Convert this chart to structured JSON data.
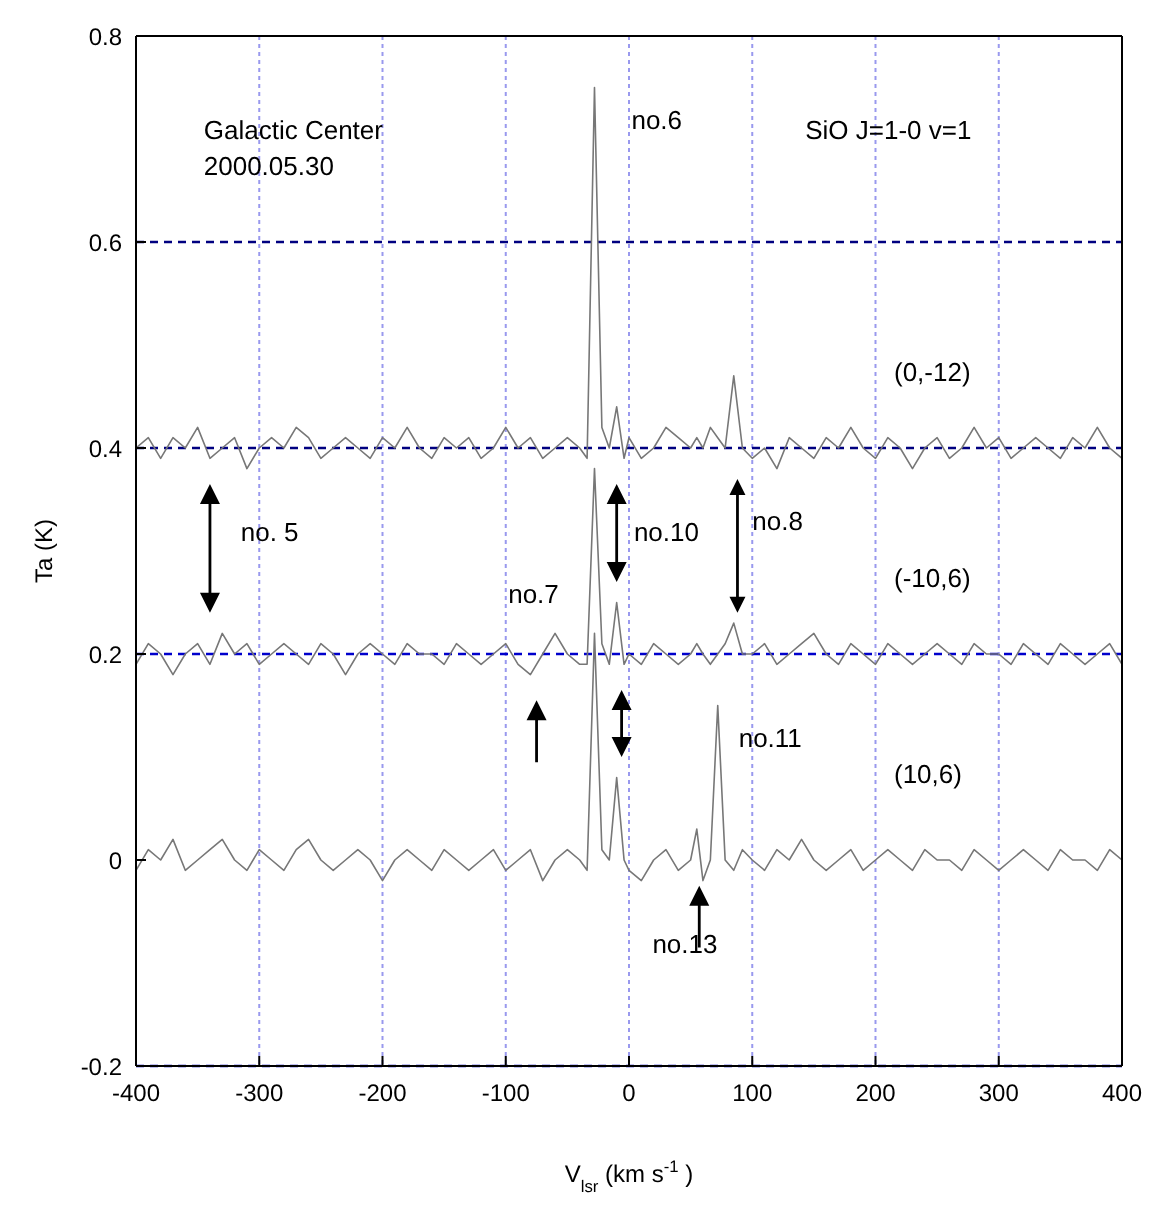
{
  "chart_data": {
    "type": "line",
    "xlabel": "V$_{lsr}$ (km s$^{-1}$)",
    "ylabel": "Ta (K)",
    "x": [
      -400,
      -390,
      -380,
      -370,
      -360,
      -350,
      -340,
      -330,
      -320,
      -310,
      -300,
      -290,
      -280,
      -270,
      -260,
      -250,
      -240,
      -230,
      -220,
      -210,
      -200,
      -190,
      -180,
      -170,
      -160,
      -150,
      -140,
      -130,
      -120,
      -110,
      -100,
      -90,
      -80,
      -70,
      -60,
      -50,
      -40,
      -34,
      -28,
      -22,
      -16,
      -10,
      -4,
      0,
      10,
      20,
      30,
      40,
      50,
      55,
      60,
      66,
      72,
      78,
      85,
      92,
      100,
      110,
      120,
      130,
      140,
      150,
      160,
      170,
      180,
      190,
      200,
      210,
      220,
      230,
      240,
      250,
      260,
      270,
      280,
      290,
      300,
      310,
      320,
      330,
      340,
      350,
      360,
      370,
      380,
      390,
      400
    ],
    "series": [
      {
        "name": "(0,-12)",
        "color": "#777777",
        "values": [
          0.4,
          0.41,
          0.39,
          0.41,
          0.4,
          0.42,
          0.39,
          0.4,
          0.41,
          0.38,
          0.4,
          0.41,
          0.4,
          0.42,
          0.41,
          0.39,
          0.4,
          0.41,
          0.4,
          0.39,
          0.41,
          0.4,
          0.42,
          0.4,
          0.39,
          0.41,
          0.4,
          0.41,
          0.39,
          0.4,
          0.42,
          0.4,
          0.41,
          0.39,
          0.4,
          0.41,
          0.4,
          0.39,
          0.75,
          0.42,
          0.4,
          0.44,
          0.39,
          0.41,
          0.39,
          0.4,
          0.42,
          0.41,
          0.4,
          0.41,
          0.4,
          0.42,
          0.41,
          0.4,
          0.47,
          0.4,
          0.39,
          0.4,
          0.38,
          0.41,
          0.4,
          0.39,
          0.41,
          0.4,
          0.42,
          0.4,
          0.39,
          0.41,
          0.4,
          0.38,
          0.4,
          0.41,
          0.39,
          0.4,
          0.42,
          0.4,
          0.41,
          0.39,
          0.4,
          0.41,
          0.4,
          0.39,
          0.41,
          0.4,
          0.42,
          0.4,
          0.39
        ]
      },
      {
        "name": "(-10,6)",
        "color": "#777777",
        "values": [
          0.19,
          0.21,
          0.2,
          0.18,
          0.2,
          0.21,
          0.19,
          0.22,
          0.2,
          0.21,
          0.19,
          0.2,
          0.21,
          0.2,
          0.19,
          0.21,
          0.2,
          0.18,
          0.2,
          0.21,
          0.2,
          0.19,
          0.21,
          0.2,
          0.2,
          0.19,
          0.21,
          0.2,
          0.19,
          0.2,
          0.21,
          0.19,
          0.18,
          0.2,
          0.22,
          0.2,
          0.19,
          0.19,
          0.38,
          0.21,
          0.19,
          0.25,
          0.19,
          0.2,
          0.19,
          0.21,
          0.2,
          0.19,
          0.2,
          0.21,
          0.2,
          0.19,
          0.2,
          0.21,
          0.23,
          0.2,
          0.2,
          0.21,
          0.19,
          0.2,
          0.21,
          0.22,
          0.2,
          0.19,
          0.21,
          0.2,
          0.19,
          0.21,
          0.2,
          0.19,
          0.2,
          0.21,
          0.2,
          0.19,
          0.21,
          0.2,
          0.2,
          0.19,
          0.21,
          0.2,
          0.19,
          0.21,
          0.2,
          0.19,
          0.2,
          0.21,
          0.19
        ]
      },
      {
        "name": "(10,6)",
        "color": "#777777",
        "values": [
          -0.01,
          0.01,
          0.0,
          0.02,
          -0.01,
          0.0,
          0.01,
          0.02,
          0.0,
          -0.01,
          0.01,
          0.0,
          -0.01,
          0.01,
          0.02,
          0.0,
          -0.01,
          0.0,
          0.01,
          0.0,
          -0.02,
          0.0,
          0.01,
          0.0,
          -0.01,
          0.01,
          0.0,
          -0.01,
          0.0,
          0.01,
          -0.01,
          0.0,
          0.01,
          -0.02,
          0.0,
          0.01,
          0.0,
          -0.01,
          0.22,
          0.01,
          0.0,
          0.08,
          0.0,
          -0.01,
          -0.02,
          0.0,
          0.01,
          -0.01,
          0.0,
          0.03,
          -0.02,
          0.0,
          0.15,
          0.0,
          -0.01,
          0.01,
          0.0,
          -0.01,
          0.01,
          0.0,
          0.02,
          0.0,
          -0.01,
          0.0,
          0.01,
          -0.01,
          0.0,
          0.01,
          0.0,
          -0.01,
          0.01,
          0.0,
          0.0,
          -0.01,
          0.01,
          0.0,
          -0.01,
          0.0,
          0.01,
          0.0,
          -0.01,
          0.01,
          0.0,
          0.0,
          -0.01,
          0.01,
          0.0
        ]
      }
    ],
    "xlim": [
      -400,
      400
    ],
    "xticks": [
      -400,
      -300,
      -200,
      -100,
      0,
      100,
      200,
      300,
      400
    ],
    "ylim": [
      -0.2,
      0.8
    ],
    "yticks": [
      -0.2,
      0,
      0.2,
      0.4,
      0.6,
      0.8
    ],
    "grid": "x",
    "marker": "none",
    "line_style": "solid",
    "ref_lines": [
      {
        "axis": "y",
        "value": 0.6,
        "color": "#000080",
        "line_style": "dashed"
      },
      {
        "axis": "y",
        "value": 0.4,
        "color": "#000080",
        "line_style": "dashed"
      },
      {
        "axis": "y",
        "value": 0.2,
        "color": "#0000cc",
        "line_style": "dashed"
      },
      {
        "axis": "y",
        "value": -0.2,
        "color": "#0000cc",
        "line_style": "dashed"
      }
    ],
    "annotations": [
      "Galactic Center",
      "2000.05.30",
      "SiO J=1-0 v=1",
      "no.6",
      "no. 5",
      "no.10",
      "no.8",
      "no.7",
      "no.11",
      "no.13"
    ]
  }
}
